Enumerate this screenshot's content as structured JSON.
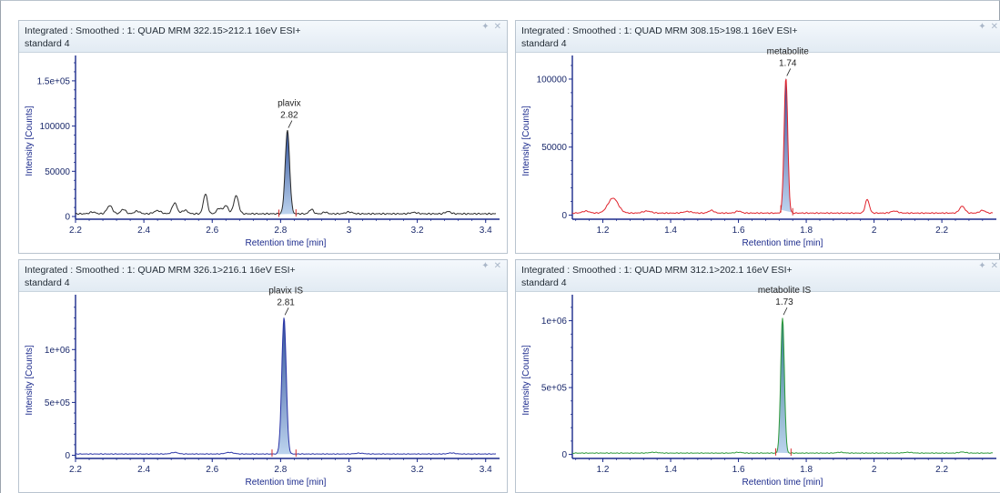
{
  "panes": [
    {
      "title": "Integrated : Smoothed :  1: QUAD MRM 322.15>212.1 16eV ESI+",
      "sample": "standard 4",
      "icons": [
        "pin-icon",
        "close-icon"
      ]
    },
    {
      "title": "Integrated : Smoothed :  1: QUAD MRM 308.15>198.1 16eV ESI+",
      "sample": "standard 4",
      "icons": [
        "pin-icon",
        "close-icon"
      ]
    },
    {
      "title": "Integrated : Smoothed :  1: QUAD MRM 326.1>216.1 16eV ESI+",
      "sample": "standard 4",
      "icons": [
        "pin-icon",
        "close-icon"
      ]
    },
    {
      "title": "Integrated : Smoothed :  1: QUAD MRM 312.1>202.1 16eV ESI+",
      "sample": "standard 4",
      "icons": [
        "pin-icon",
        "close-icon"
      ]
    }
  ],
  "chart_data": [
    {
      "type": "line",
      "xlabel": "Retention time [min]",
      "ylabel": "Intensity [Counts]",
      "xlim": [
        2.2,
        3.43
      ],
      "ylim": [
        -3000,
        170000
      ],
      "xticks": [
        2.2,
        2.4,
        2.6,
        2.8,
        3,
        3.2,
        3.4
      ],
      "xtick_labels": [
        "2.2",
        "2.4",
        "2.6",
        "2.8",
        "3",
        "3.2",
        "3.4"
      ],
      "yticks": [
        0,
        50000,
        100000,
        150000
      ],
      "ytick_labels": [
        "0",
        "50000",
        "100000",
        "1.5e+05"
      ],
      "line_color": "#2b2b2b",
      "fill_color": "#2e4f9a",
      "baseline": 3000,
      "peaks": [
        [
          2.25,
          2000,
          0.008
        ],
        [
          2.3,
          9000,
          0.008
        ],
        [
          2.34,
          5000,
          0.007
        ],
        [
          2.38,
          3000,
          0.008
        ],
        [
          2.44,
          3500,
          0.01
        ],
        [
          2.49,
          12000,
          0.007
        ],
        [
          2.52,
          4000,
          0.008
        ],
        [
          2.58,
          22000,
          0.006
        ],
        [
          2.62,
          6000,
          0.007
        ],
        [
          2.64,
          9000,
          0.007
        ],
        [
          2.67,
          20000,
          0.007
        ],
        [
          2.82,
          92000,
          0.0065
        ],
        [
          2.89,
          5000,
          0.006
        ],
        [
          2.93,
          2000,
          0.006
        ],
        [
          3.0,
          2000,
          0.01
        ],
        [
          3.19,
          1500,
          0.01
        ],
        [
          3.29,
          2500,
          0.008
        ]
      ],
      "integration": {
        "start": 2.795,
        "end": 2.845
      },
      "annotation": {
        "name": "plavix",
        "time": "2.82",
        "x": 2.82,
        "y": 96000
      }
    },
    {
      "type": "line",
      "xlabel": "Retention time [min]",
      "ylabel": "Intensity [Counts]",
      "xlim": [
        1.11,
        2.35
      ],
      "ylim": [
        -3000,
        112000
      ],
      "xticks": [
        1.2,
        1.4,
        1.6,
        1.8,
        2,
        2.2
      ],
      "xtick_labels": [
        "1.2",
        "1.4",
        "1.6",
        "1.8",
        "2",
        "2.2"
      ],
      "yticks": [
        0,
        50000,
        100000
      ],
      "ytick_labels": [
        "0",
        "50000",
        "100000"
      ],
      "line_color": "#e0242d",
      "fill_color": "#3a4f98",
      "baseline": 1500,
      "peaks": [
        [
          1.15,
          1500,
          0.01
        ],
        [
          1.23,
          11000,
          0.015
        ],
        [
          1.33,
          1500,
          0.012
        ],
        [
          1.45,
          1200,
          0.012
        ],
        [
          1.52,
          2000,
          0.008
        ],
        [
          1.6,
          1500,
          0.008
        ],
        [
          1.74,
          99000,
          0.0055
        ],
        [
          1.98,
          10000,
          0.006
        ],
        [
          2.06,
          1500,
          0.01
        ],
        [
          2.26,
          5000,
          0.008
        ],
        [
          2.32,
          2000,
          0.008
        ]
      ],
      "integration": {
        "start": 1.725,
        "end": 1.76
      },
      "annotation": {
        "name": "metabolite",
        "time": "1.74",
        "x": 1.74,
        "y": 101000
      }
    },
    {
      "type": "line",
      "xlabel": "Retention time [min]",
      "ylabel": "Intensity [Counts]",
      "xlim": [
        2.2,
        3.43
      ],
      "ylim": [
        -30000,
        1450000
      ],
      "xticks": [
        2.2,
        2.4,
        2.6,
        2.8,
        3,
        3.2,
        3.4
      ],
      "xtick_labels": [
        "2.2",
        "2.4",
        "2.6",
        "2.8",
        "3",
        "3.2",
        "3.4"
      ],
      "yticks": [
        0,
        500000,
        1000000
      ],
      "ytick_labels": [
        "0",
        "5e+05",
        "1e+06"
      ],
      "line_color": "#2c36a8",
      "fill_color": "#2e4f9a",
      "baseline": 12000,
      "peaks": [
        [
          2.49,
          15000,
          0.01
        ],
        [
          2.65,
          15000,
          0.012
        ],
        [
          2.81,
          1290000,
          0.0065
        ],
        [
          3.03,
          8000,
          0.012
        ],
        [
          3.3,
          10000,
          0.01
        ]
      ],
      "integration": {
        "start": 2.775,
        "end": 2.845
      },
      "annotation": {
        "name": "plavix IS",
        "time": "2.81",
        "x": 2.81,
        "y": 1310000
      }
    },
    {
      "type": "line",
      "xlabel": "Retention time [min]",
      "ylabel": "Intensity [Counts]",
      "xlim": [
        1.11,
        2.35
      ],
      "ylim": [
        -30000,
        1140000
      ],
      "xticks": [
        1.2,
        1.4,
        1.6,
        1.8,
        2,
        2.2
      ],
      "xtick_labels": [
        "1.2",
        "1.4",
        "1.6",
        "1.8",
        "2",
        "2.2"
      ],
      "yticks": [
        0,
        500000,
        1000000
      ],
      "ytick_labels": [
        "0",
        "5e+05",
        "1e+06"
      ],
      "line_color": "#2e9a3c",
      "fill_color": "#2f7a8a",
      "baseline": 10000,
      "peaks": [
        [
          1.35,
          6000,
          0.012
        ],
        [
          1.6,
          6000,
          0.01
        ],
        [
          1.73,
          1010000,
          0.0055
        ],
        [
          1.9,
          6000,
          0.01
        ],
        [
          2.1,
          6000,
          0.012
        ],
        [
          2.26,
          8000,
          0.01
        ]
      ],
      "integration": {
        "start": 1.71,
        "end": 1.755
      },
      "annotation": {
        "name": "metabolite IS",
        "time": "1.73",
        "x": 1.73,
        "y": 1030000
      }
    }
  ]
}
